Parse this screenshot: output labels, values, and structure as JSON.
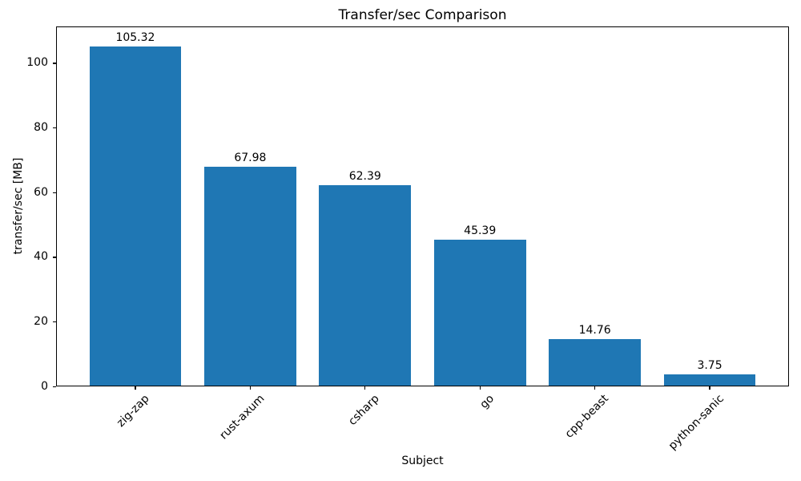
{
  "chart_data": {
    "type": "bar",
    "title": "Transfer/sec Comparison",
    "xlabel": "Subject",
    "ylabel": "transfer/sec [MB]",
    "categories": [
      "zig-zap",
      "rust-axum",
      "csharp",
      "go",
      "cpp-beast",
      "python-sanic"
    ],
    "values": [
      105.32,
      67.98,
      62.39,
      45.39,
      14.76,
      3.75
    ],
    "bar_value_labels": [
      "105.32",
      "67.98",
      "62.39",
      "45.39",
      "14.76",
      "3.75"
    ],
    "yticks": [
      0,
      20,
      40,
      60,
      80,
      100
    ],
    "ytick_labels": [
      "0",
      "20",
      "40",
      "60",
      "80",
      "100"
    ],
    "ylim": [
      0,
      111.4
    ],
    "bar_color": "#1f77b4",
    "axis_color": "#000000",
    "text_color": "#000000",
    "background_color": "#ffffff",
    "x_tick_label_rotation_deg": 45,
    "grid": false,
    "legend_position": "none"
  }
}
